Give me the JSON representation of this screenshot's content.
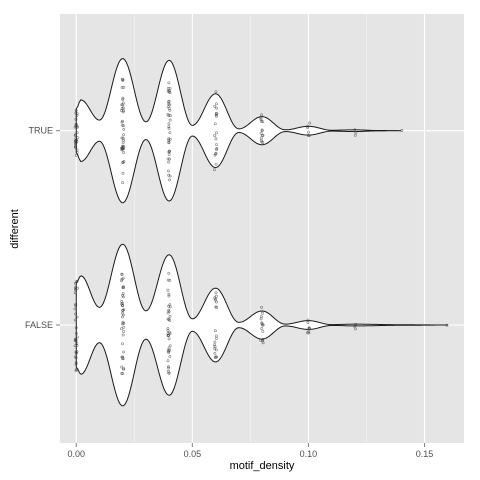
{
  "chart_data": {
    "type": "violin",
    "orientation": "horizontal",
    "xlabel": "motif_density",
    "ylabel": "different",
    "xlim": [
      -0.007,
      0.167
    ],
    "x_ticks": [
      0.0,
      0.05,
      0.1,
      0.15
    ],
    "x_tick_labels": [
      "0.00",
      "0.05",
      "0.10",
      "0.15"
    ],
    "categories": [
      "TRUE",
      "FALSE"
    ],
    "grid": true,
    "background": "#e5e5e5",
    "grid_color": "#ffffff",
    "violin_fill": "#ffffff",
    "violin_stroke": "#1a1a1a",
    "point_color": "#333333",
    "violins": [
      {
        "category": "TRUE",
        "range": [
          0.0,
          0.14
        ],
        "density_profile": [
          {
            "x": 0.0,
            "w": 0.25
          },
          {
            "x": 0.002,
            "w": 0.35
          },
          {
            "x": 0.01,
            "w": 0.12
          },
          {
            "x": 0.02,
            "w": 0.82
          },
          {
            "x": 0.03,
            "w": 0.1
          },
          {
            "x": 0.04,
            "w": 0.8
          },
          {
            "x": 0.05,
            "w": 0.06
          },
          {
            "x": 0.06,
            "w": 0.42
          },
          {
            "x": 0.07,
            "w": 0.02
          },
          {
            "x": 0.08,
            "w": 0.16
          },
          {
            "x": 0.09,
            "w": 0.01
          },
          {
            "x": 0.1,
            "w": 0.05
          },
          {
            "x": 0.11,
            "w": 0.005
          },
          {
            "x": 0.12,
            "w": 0.01
          },
          {
            "x": 0.13,
            "w": 0.002
          },
          {
            "x": 0.14,
            "w": 0.0
          }
        ],
        "points": [
          {
            "x": 0.0,
            "count": 30
          },
          {
            "x": 0.02,
            "count": 40
          },
          {
            "x": 0.04,
            "count": 38
          },
          {
            "x": 0.06,
            "count": 20
          },
          {
            "x": 0.08,
            "count": 14
          },
          {
            "x": 0.1,
            "count": 6
          },
          {
            "x": 0.12,
            "count": 3
          },
          {
            "x": 0.14,
            "count": 1
          }
        ]
      },
      {
        "category": "FALSE",
        "range": [
          0.0,
          0.16
        ],
        "density_profile": [
          {
            "x": 0.0,
            "w": 0.48
          },
          {
            "x": 0.002,
            "w": 0.56
          },
          {
            "x": 0.01,
            "w": 0.2
          },
          {
            "x": 0.02,
            "w": 0.92
          },
          {
            "x": 0.03,
            "w": 0.16
          },
          {
            "x": 0.04,
            "w": 0.8
          },
          {
            "x": 0.05,
            "w": 0.07
          },
          {
            "x": 0.06,
            "w": 0.42
          },
          {
            "x": 0.07,
            "w": 0.03
          },
          {
            "x": 0.08,
            "w": 0.16
          },
          {
            "x": 0.09,
            "w": 0.01
          },
          {
            "x": 0.1,
            "w": 0.05
          },
          {
            "x": 0.11,
            "w": 0.005
          },
          {
            "x": 0.12,
            "w": 0.01
          },
          {
            "x": 0.14,
            "w": 0.003
          },
          {
            "x": 0.16,
            "w": 0.0
          }
        ],
        "points": [
          {
            "x": 0.0,
            "count": 34
          },
          {
            "x": 0.02,
            "count": 40
          },
          {
            "x": 0.04,
            "count": 38
          },
          {
            "x": 0.06,
            "count": 20
          },
          {
            "x": 0.08,
            "count": 14
          },
          {
            "x": 0.1,
            "count": 8
          },
          {
            "x": 0.12,
            "count": 3
          },
          {
            "x": 0.16,
            "count": 1
          }
        ]
      }
    ]
  }
}
